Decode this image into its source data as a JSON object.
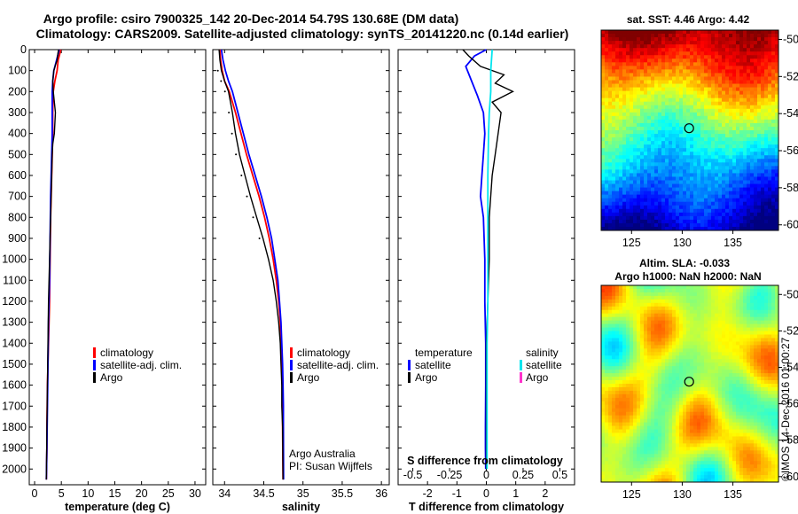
{
  "title_line1": "Argo profile: csiro 7900325_142 20-Dec-2014 54.79S 130.68E (DM data)",
  "title_line2": "Climatology: CARS2009. Satellite-adjusted climatology: synTS_20141220.nc (0.14d earlier)",
  "credit": "©IMOS 14-Dec-2016 01:00:27",
  "colors": {
    "clim": "#ff0000",
    "sat": "#0000ff",
    "argo": "#000000",
    "sat_s": "#00e5ee",
    "argo_s": "#ff33cc"
  },
  "chart_data": [
    {
      "type": "line",
      "xlabel": "temperature (deg C)",
      "xlim": [
        -1,
        32
      ],
      "ylim": [
        2075,
        0
      ],
      "xticks": [
        0,
        5,
        10,
        15,
        20,
        25,
        30
      ],
      "yticks": [
        0,
        100,
        200,
        300,
        400,
        500,
        600,
        700,
        800,
        900,
        1000,
        1100,
        1200,
        1300,
        1400,
        1500,
        1600,
        1700,
        1800,
        1900,
        2000
      ],
      "legend": [
        "climatology",
        "satellite-adj. clim.",
        "Argo"
      ],
      "legend_placement": "lower-right",
      "series": [
        {
          "name": "climatology",
          "color": "clim",
          "x": [
            4.9,
            4.8,
            4.6,
            4.4,
            4.2,
            3.8,
            3.5,
            3.4,
            3.4,
            3.3,
            3.2,
            3.1,
            3.0,
            2.9,
            2.8,
            2.7,
            2.6,
            2.5,
            2.4,
            2.3,
            2.3,
            2.2
          ],
          "y": [
            0,
            10,
            30,
            50,
            100,
            150,
            200,
            300,
            400,
            500,
            600,
            700,
            800,
            1000,
            1200,
            1300,
            1400,
            1500,
            1600,
            1800,
            1900,
            2050
          ]
        },
        {
          "name": "satellite-adj. clim.",
          "color": "sat",
          "x": [
            4.6,
            4.4,
            4.0,
            3.6,
            3.4,
            3.3,
            3.3,
            3.3,
            3.2,
            3.1,
            3.0,
            2.9,
            2.8,
            2.6,
            2.5,
            2.4,
            2.3,
            2.2
          ],
          "y": [
            0,
            20,
            60,
            100,
            150,
            200,
            300,
            400,
            500,
            600,
            700,
            900,
            1100,
            1300,
            1500,
            1700,
            1900,
            2050
          ]
        },
        {
          "name": "Argo",
          "color": "argo",
          "x": [
            4.5,
            4.4,
            4.3,
            4.2,
            3.9,
            3.6,
            3.4,
            3.5,
            3.7,
            3.9,
            3.8,
            3.7,
            3.4,
            3.3,
            3.2,
            3.1,
            3.0,
            2.9,
            2.8,
            2.6,
            2.5,
            2.4,
            2.3,
            2.2
          ],
          "y": [
            0,
            10,
            30,
            50,
            75,
            100,
            150,
            200,
            250,
            300,
            350,
            400,
            450,
            500,
            600,
            700,
            800,
            900,
            1000,
            1200,
            1400,
            1600,
            1800,
            2050
          ]
        }
      ]
    },
    {
      "type": "line",
      "xlabel": "salinity",
      "xlim": [
        33.85,
        36.1
      ],
      "ylim": [
        2075,
        0
      ],
      "xticks": [
        34,
        34.5,
        35,
        35.5,
        36
      ],
      "legend": [
        "climatology",
        "satellite-adj. clim.",
        "Argo"
      ],
      "legend_placement": "lower-right",
      "annotation": [
        "Argo Australia",
        "PI: Susan Wijffels"
      ],
      "series": [
        {
          "name": "climatology",
          "color": "clim",
          "x": [
            33.94,
            33.95,
            33.97,
            34.0,
            34.06,
            34.14,
            34.21,
            34.28,
            34.36,
            34.44,
            34.51,
            34.57,
            34.62,
            34.66,
            34.69,
            34.71,
            34.72,
            34.73,
            34.735,
            34.74,
            34.74,
            34.745
          ],
          "y": [
            0,
            50,
            100,
            150,
            200,
            300,
            400,
            500,
            600,
            700,
            800,
            900,
            1000,
            1100,
            1200,
            1300,
            1400,
            1500,
            1600,
            1700,
            1800,
            2050
          ]
        },
        {
          "name": "satellite-adj. clim.",
          "color": "sat",
          "x": [
            33.96,
            33.98,
            34.01,
            34.05,
            34.1,
            34.17,
            34.24,
            34.31,
            34.39,
            34.47,
            34.54,
            34.6,
            34.64,
            34.68,
            34.7,
            34.72,
            34.73,
            34.74,
            34.745,
            34.75,
            34.75,
            34.752
          ],
          "y": [
            0,
            50,
            100,
            150,
            200,
            300,
            400,
            500,
            600,
            700,
            800,
            900,
            1000,
            1100,
            1200,
            1300,
            1400,
            1500,
            1600,
            1700,
            1800,
            2050
          ]
        },
        {
          "name": "Argo",
          "color": "argo",
          "x": [
            33.93,
            33.94,
            33.96,
            34.0,
            34.05,
            34.1,
            34.14,
            34.19,
            34.26,
            34.33,
            34.41,
            34.49,
            34.56,
            34.62,
            34.66,
            34.69,
            34.71,
            34.72,
            34.73,
            34.73,
            34.74,
            34.745
          ],
          "y": [
            0,
            50,
            100,
            150,
            200,
            300,
            400,
            500,
            600,
            700,
            800,
            900,
            1000,
            1100,
            1200,
            1300,
            1400,
            1500,
            1600,
            1700,
            1800,
            2050
          ]
        }
      ]
    },
    {
      "type": "line",
      "xlabel": "T difference from climatology",
      "xlim": [
        -3,
        3
      ],
      "ylim": [
        2075,
        0
      ],
      "xticks": [
        -2,
        -1,
        0,
        1,
        2
      ],
      "secondary_xlabel": "S difference from climatology",
      "secondary_xticks": [
        -0.5,
        -0.25,
        0,
        0.25,
        0.5
      ],
      "secondary_xtick_labels": [
        "-0.5",
        "-0.25",
        "0",
        "0.25",
        "0.5"
      ],
      "legend_left_title": "temperature",
      "legend_right_title": "salinity",
      "legend": [
        "satellite",
        "Argo"
      ],
      "series": [
        {
          "name": "temperature satellite",
          "color": "sat",
          "x": [
            0.0,
            -0.4,
            -0.7,
            -0.5,
            -0.3,
            -0.1,
            -0.05,
            -0.1,
            -0.15,
            -0.2,
            -0.1,
            -0.05,
            -0.05,
            -0.02,
            -0.02,
            -0.03,
            -0.03,
            -0.02
          ],
          "y": [
            0,
            30,
            80,
            150,
            220,
            300,
            400,
            500,
            600,
            700,
            800,
            1000,
            1200,
            1400,
            1600,
            1800,
            1900,
            2000
          ]
        },
        {
          "name": "temperature Argo",
          "color": "argo",
          "x": [
            -0.8,
            -0.6,
            -0.2,
            0.6,
            0.3,
            0.9,
            0.2,
            0.5,
            0.4,
            0.3,
            0.2,
            0.1,
            0.1,
            0.05,
            0.0,
            0.0,
            0.0,
            0.0
          ],
          "y": [
            0,
            30,
            80,
            120,
            160,
            200,
            250,
            300,
            400,
            500,
            600,
            800,
            1000,
            1200,
            1400,
            1600,
            1800,
            2000
          ]
        },
        {
          "name": "salinity satellite",
          "color": "sat_s",
          "x": [
            0.04,
            0.03,
            0.03,
            0.02,
            0.015,
            0.01,
            0.01,
            0.01,
            0.01,
            0.005,
            0.005,
            0.005,
            0.005
          ],
          "y": [
            0,
            100,
            200,
            300,
            400,
            600,
            800,
            1000,
            1200,
            1400,
            1600,
            1800,
            2000
          ]
        },
        {
          "name": "salinity Argo",
          "color": "argo_s",
          "x": [],
          "y": []
        }
      ]
    },
    {
      "type": "heatmap",
      "title": "sat. SST: 4.46 Argo: 4.42",
      "xticks": [
        125,
        130,
        135
      ],
      "yticks": [
        -50,
        -52,
        -54,
        -56,
        -58,
        -60
      ],
      "xlim": [
        122,
        139.5
      ],
      "ylim": [
        -60.3,
        -49.5
      ],
      "marker": {
        "x": 130.68,
        "y": -54.79
      }
    },
    {
      "type": "heatmap",
      "title": "Altim. SLA: -0.033",
      "subtitle": "Argo h1000: NaN h2000: NaN",
      "xticks": [
        125,
        130,
        135
      ],
      "yticks": [
        -50,
        -52,
        -54,
        -56,
        -58,
        -60
      ],
      "xlim": [
        122,
        139.5
      ],
      "ylim": [
        -60.3,
        -49.5
      ],
      "marker": {
        "x": 130.68,
        "y": -54.79
      }
    }
  ]
}
